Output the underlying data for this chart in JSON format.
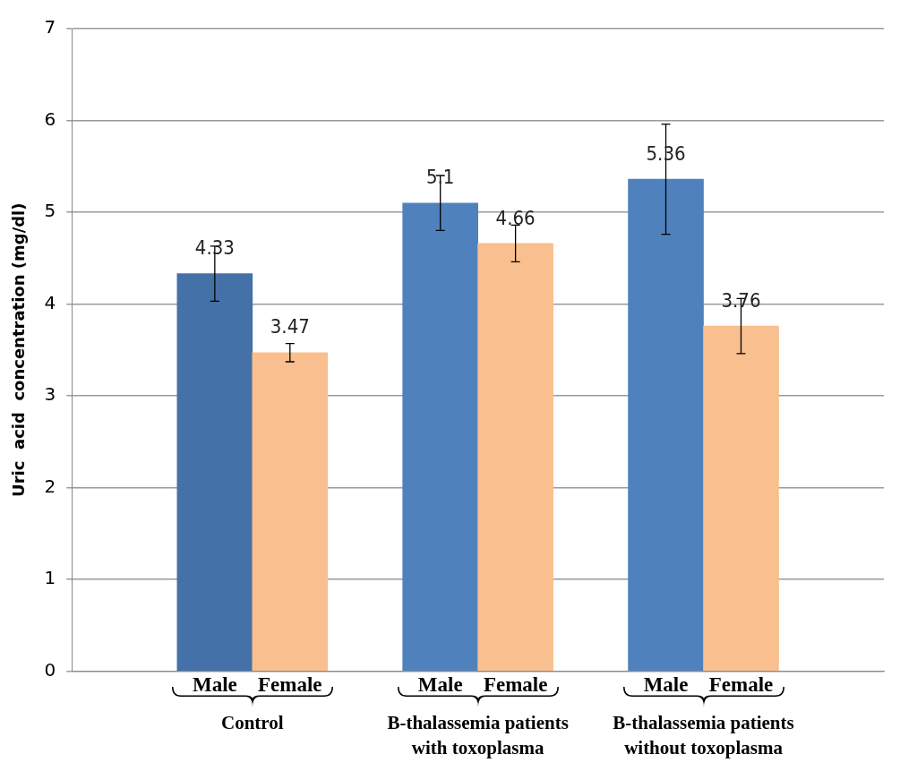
{
  "chart_data": {
    "type": "bar",
    "ylabel": "Uric  acid  concentration (mg/dl)",
    "categories": [
      "Male",
      "Female",
      "Male",
      "Female",
      "Male",
      "Female"
    ],
    "values": [
      4.33,
      3.47,
      5.1,
      4.66,
      5.36,
      3.76
    ],
    "colors": [
      "#4471a7",
      "#f9bf8f",
      "#4f81bd",
      "#f9bf8f",
      "#4f81bd",
      "#f9bf8f"
    ],
    "errors": [
      0.3,
      0.1,
      0.3,
      0.2,
      0.6,
      0.3
    ],
    "data_labels": true,
    "ylim": [
      0,
      7
    ],
    "yticks": [
      0,
      1,
      2,
      3,
      4,
      5,
      6,
      7
    ],
    "grid": "y",
    "annotations": [
      "Control",
      "B-thalassemia patients with toxoplasma",
      "B-thalassemia patients without toxoplasma"
    ]
  }
}
